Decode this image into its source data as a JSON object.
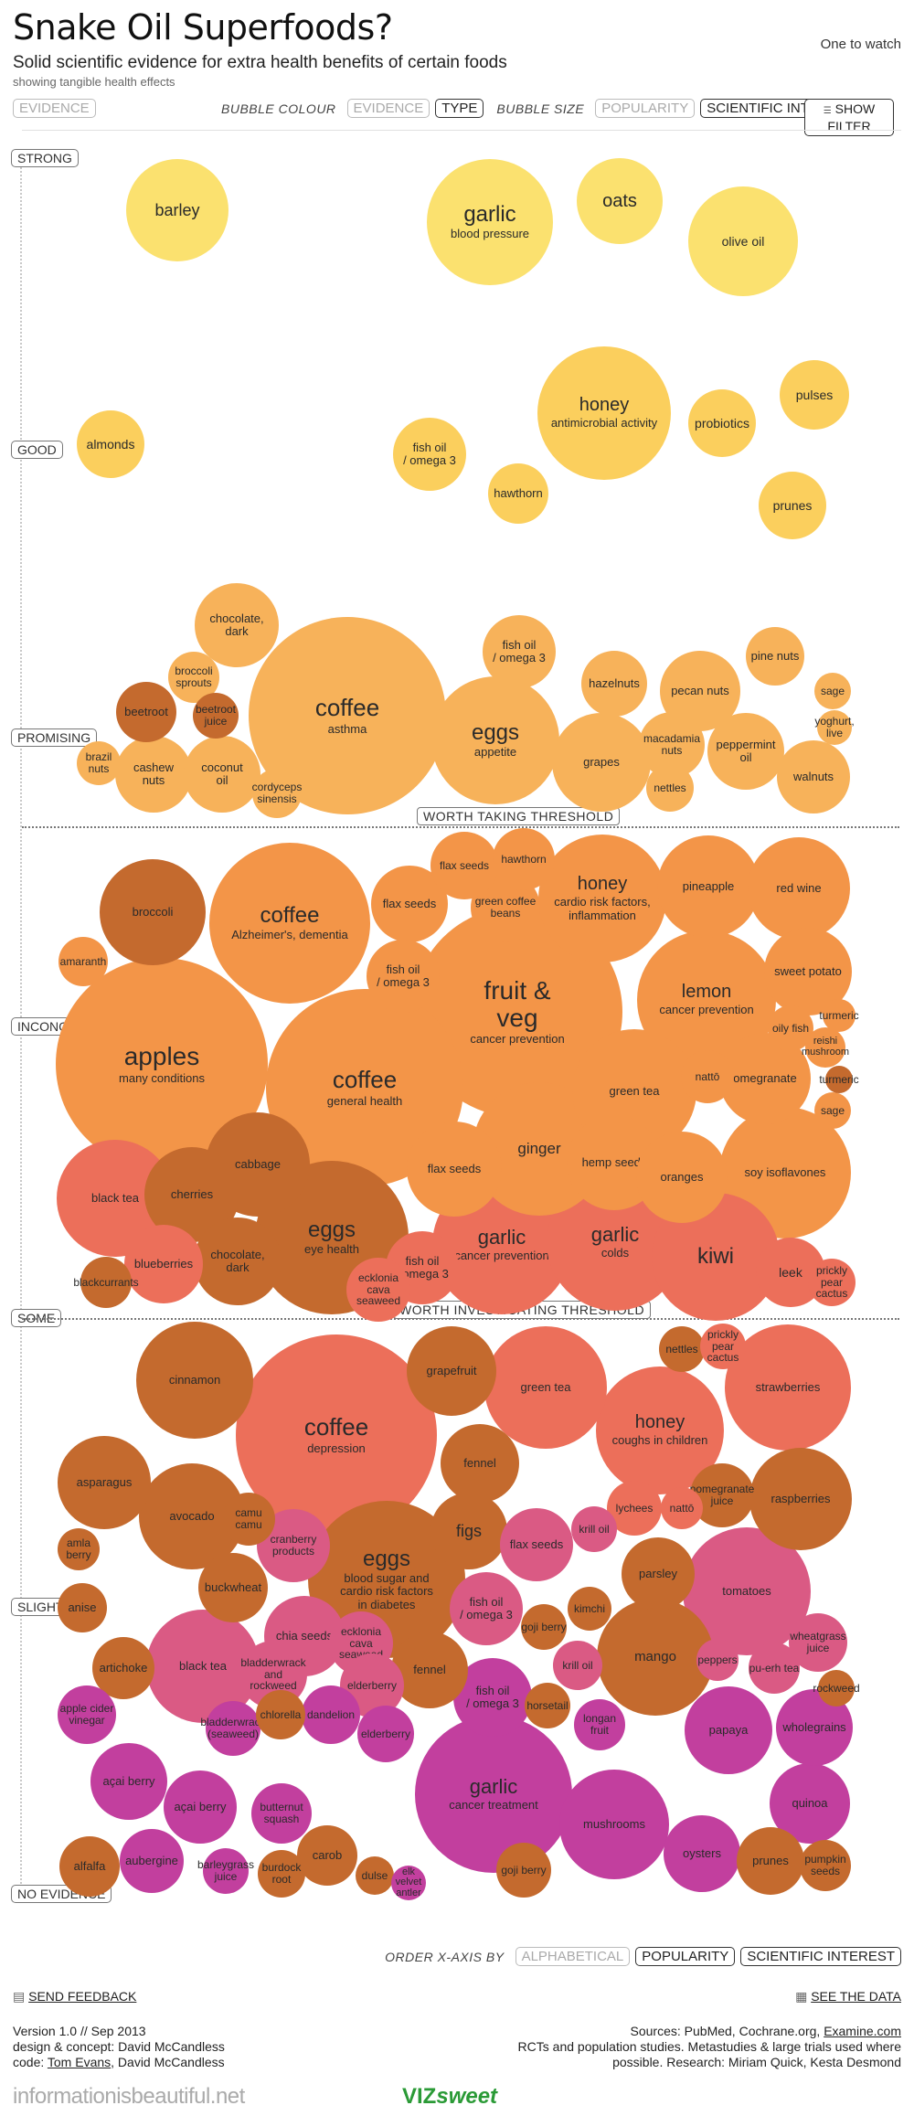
{
  "header": {
    "title": "Snake Oil Superfoods?",
    "subtitle": "Solid scientific evidence for extra health benefits of certain foods",
    "subsubtitle": "showing tangible health effects",
    "watch": "One to watch"
  },
  "controls": {
    "evidence": "EVIDENCE",
    "bubble_colour_label": "BUBBLE COLOUR",
    "colour_evidence": "EVIDENCE",
    "colour_type": "TYPE",
    "bubble_size_label": "BUBBLE SIZE",
    "size_popularity": "POPULARITY",
    "size_scientific": "SCIENTIFIC INTEREST",
    "show_filter": "SHOW FILTER",
    "order_label": "ORDER X-AXIS BY",
    "order_alpha": "ALPHABETICAL",
    "order_popularity": "POPULARITY",
    "order_scientific": "SCIENTIFIC INTEREST"
  },
  "levels": [
    "STRONG",
    "GOOD",
    "PROMISING",
    "INCONCLUSIVE",
    "SOME",
    "SLIGHT",
    "NO EVIDENCE"
  ],
  "thresholds": {
    "taking": "WORTH TAKING THRESHOLD",
    "investigating": "WORTH INVESTIGATING THRESHOLD"
  },
  "colors": {
    "strong": "#fbe16f",
    "good": "#fbcf5d",
    "promising": "#f7b25a",
    "inconclusive": "#f39548",
    "some": "#ec6f5a",
    "slight": "#da5a84",
    "none": "#c23f9e",
    "type_dark": "#c46a2e"
  },
  "bubbles": [
    {
      "id": "barley",
      "name": "barley",
      "sub": "",
      "c": "strong",
      "fs": 18
    },
    {
      "id": "garlic-bp",
      "name": "garlic",
      "sub": "blood pressure",
      "c": "strong",
      "fs": 24
    },
    {
      "id": "oats",
      "name": "oats",
      "sub": "",
      "c": "strong",
      "fs": 20
    },
    {
      "id": "olive-oil",
      "name": "olive oil",
      "sub": "",
      "c": "strong",
      "fs": 14
    },
    {
      "id": "honey-am",
      "name": "honey",
      "sub": "antimicrobial activity",
      "c": "good",
      "fs": 20
    },
    {
      "id": "pulses",
      "name": "pulses",
      "sub": "",
      "c": "good",
      "fs": 14
    },
    {
      "id": "almonds",
      "name": "almonds",
      "sub": "",
      "c": "good",
      "fs": 14
    },
    {
      "id": "probiotics",
      "name": "probiotics",
      "sub": "",
      "c": "good",
      "fs": 14
    },
    {
      "id": "fish-oil-1",
      "name": "fish oil\n/ omega 3",
      "sub": "",
      "c": "good",
      "fs": 13
    },
    {
      "id": "hawthorn-1",
      "name": "hawthorn",
      "sub": "",
      "c": "good",
      "fs": 13
    },
    {
      "id": "prunes-1",
      "name": "prunes",
      "sub": "",
      "c": "good",
      "fs": 14
    },
    {
      "id": "chocolate-1",
      "name": "chocolate,\ndark",
      "sub": "",
      "c": "promising",
      "fs": 13
    },
    {
      "id": "coffee-asthma",
      "name": "coffee",
      "sub": "asthma",
      "c": "promising",
      "fs": 26
    },
    {
      "id": "fish-oil-2",
      "name": "fish oil\n/ omega 3",
      "sub": "",
      "c": "promising",
      "fs": 13
    },
    {
      "id": "pine-nuts",
      "name": "pine nuts",
      "sub": "",
      "c": "promising",
      "fs": 13
    },
    {
      "id": "broccoli-sprouts",
      "name": "broccoli\nsprouts",
      "sub": "",
      "c": "promising",
      "fs": 12
    },
    {
      "id": "beetroot",
      "name": "beetroot",
      "sub": "",
      "c": "type_dark",
      "fs": 13
    },
    {
      "id": "beetroot-juice",
      "name": "beetroot\njuice",
      "sub": "",
      "c": "type_dark",
      "fs": 12
    },
    {
      "id": "hazelnuts",
      "name": "hazelnuts",
      "sub": "",
      "c": "promising",
      "fs": 13
    },
    {
      "id": "pecan-nuts",
      "name": "pecan nuts",
      "sub": "",
      "c": "promising",
      "fs": 13
    },
    {
      "id": "sage-1",
      "name": "sage",
      "sub": "",
      "c": "promising",
      "fs": 12
    },
    {
      "id": "eggs-appetite",
      "name": "eggs",
      "sub": "appetite",
      "c": "promising",
      "fs": 24
    },
    {
      "id": "yoghurt",
      "name": "yoghurt,\nlive",
      "sub": "",
      "c": "promising",
      "fs": 12
    },
    {
      "id": "brazil-nuts",
      "name": "brazil\nnuts",
      "sub": "",
      "c": "promising",
      "fs": 12
    },
    {
      "id": "cashew-nuts",
      "name": "cashew\nnuts",
      "sub": "",
      "c": "promising",
      "fs": 13
    },
    {
      "id": "coconut-oil",
      "name": "coconut\noil",
      "sub": "",
      "c": "promising",
      "fs": 13
    },
    {
      "id": "macadamia",
      "name": "macadamia\nnuts",
      "sub": "",
      "c": "promising",
      "fs": 12
    },
    {
      "id": "peppermint",
      "name": "peppermint\noil",
      "sub": "",
      "c": "promising",
      "fs": 13
    },
    {
      "id": "grapes",
      "name": "grapes",
      "sub": "",
      "c": "promising",
      "fs": 13
    },
    {
      "id": "walnuts",
      "name": "walnuts",
      "sub": "",
      "c": "promising",
      "fs": 13
    },
    {
      "id": "cordyceps",
      "name": "cordyceps\nsinensis",
      "sub": "",
      "c": "promising",
      "fs": 12
    },
    {
      "id": "nettles-1",
      "name": "nettles",
      "sub": "",
      "c": "promising",
      "fs": 12
    },
    {
      "id": "broccoli",
      "name": "broccoli",
      "sub": "",
      "c": "type_dark",
      "fs": 13
    },
    {
      "id": "coffee-alz",
      "name": "coffee",
      "sub": "Alzheimer's, dementia",
      "c": "inconclusive",
      "fs": 24
    },
    {
      "id": "flax-1",
      "name": "flax seeds",
      "sub": "",
      "c": "inconclusive",
      "fs": 12
    },
    {
      "id": "hawthorn-2",
      "name": "hawthorn",
      "sub": "",
      "c": "inconclusive",
      "fs": 12
    },
    {
      "id": "flax-2",
      "name": "flax seeds",
      "sub": "",
      "c": "inconclusive",
      "fs": 13
    },
    {
      "id": "green-coffee",
      "name": "green coffee\nbeans",
      "sub": "",
      "c": "inconclusive",
      "fs": 12
    },
    {
      "id": "honey-cardio",
      "name": "honey",
      "sub": "cardio risk factors,\ninflammation",
      "c": "inconclusive",
      "fs": 20
    },
    {
      "id": "pineapple",
      "name": "pineapple",
      "sub": "",
      "c": "inconclusive",
      "fs": 13
    },
    {
      "id": "red-wine",
      "name": "red wine",
      "sub": "",
      "c": "inconclusive",
      "fs": 13
    },
    {
      "id": "amaranth",
      "name": "amaranth",
      "sub": "",
      "c": "inconclusive",
      "fs": 12
    },
    {
      "id": "fish-oil-3",
      "name": "fish oil\n/ omega 3",
      "sub": "",
      "c": "inconclusive",
      "fs": 13
    },
    {
      "id": "fruit-veg",
      "name": "fruit &\nveg",
      "sub": "cancer prevention",
      "c": "inconclusive",
      "fs": 28
    },
    {
      "id": "lemon",
      "name": "lemon",
      "sub": "cancer prevention",
      "c": "inconclusive",
      "fs": 20
    },
    {
      "id": "sweet-potato",
      "name": "sweet potato",
      "sub": "",
      "c": "inconclusive",
      "fs": 13
    },
    {
      "id": "turmeric-1",
      "name": "turmeric",
      "sub": "",
      "c": "inconclusive",
      "fs": 12
    },
    {
      "id": "oily-fish",
      "name": "oily fish",
      "sub": "",
      "c": "inconclusive",
      "fs": 12
    },
    {
      "id": "reishi",
      "name": "reishi\nmushroom",
      "sub": "",
      "c": "inconclusive",
      "fs": 11
    },
    {
      "id": "apples",
      "name": "apples",
      "sub": "many conditions",
      "c": "inconclusive",
      "fs": 28
    },
    {
      "id": "coffee-gh",
      "name": "coffee",
      "sub": "general health",
      "c": "inconclusive",
      "fs": 26
    },
    {
      "id": "green-tea-1",
      "name": "green tea",
      "sub": "",
      "c": "inconclusive",
      "fs": 13
    },
    {
      "id": "natto-1",
      "name": "nattō",
      "sub": "",
      "c": "inconclusive",
      "fs": 12
    },
    {
      "id": "omegranate",
      "name": "omegranate",
      "sub": "",
      "c": "inconclusive",
      "fs": 13
    },
    {
      "id": "turmeric-2",
      "name": "turmeric",
      "sub": "",
      "c": "type_dark",
      "fs": 12
    },
    {
      "id": "sage-2",
      "name": "sage",
      "sub": "",
      "c": "inconclusive",
      "fs": 12
    },
    {
      "id": "cabbage",
      "name": "cabbage",
      "sub": "",
      "c": "type_dark",
      "fs": 13
    },
    {
      "id": "ginger",
      "name": "ginger",
      "sub": "",
      "c": "inconclusive",
      "fs": 17
    },
    {
      "id": "flax-3",
      "name": "flax seeds",
      "sub": "",
      "c": "inconclusive",
      "fs": 13
    },
    {
      "id": "hemp-seeds",
      "name": "hemp seeds",
      "sub": "",
      "c": "inconclusive",
      "fs": 13
    },
    {
      "id": "oranges",
      "name": "oranges",
      "sub": "",
      "c": "inconclusive",
      "fs": 13
    },
    {
      "id": "soy-iso",
      "name": "soy isoflavones",
      "sub": "",
      "c": "inconclusive",
      "fs": 13
    },
    {
      "id": "black-tea-1",
      "name": "black tea",
      "sub": "",
      "c": "some",
      "fs": 13
    },
    {
      "id": "cherries",
      "name": "cherries",
      "sub": "",
      "c": "type_dark",
      "fs": 13
    },
    {
      "id": "eggs-eye",
      "name": "eggs",
      "sub": "eye health",
      "c": "type_dark",
      "fs": 24
    },
    {
      "id": "garlic-cancer",
      "name": "garlic",
      "sub": "cancer prevention",
      "c": "some",
      "fs": 22
    },
    {
      "id": "garlic-colds",
      "name": "garlic",
      "sub": "colds",
      "c": "some",
      "fs": 22
    },
    {
      "id": "kiwi",
      "name": "kiwi",
      "sub": "",
      "c": "some",
      "fs": 24
    },
    {
      "id": "blueberries",
      "name": "blueberries",
      "sub": "",
      "c": "some",
      "fs": 13
    },
    {
      "id": "chocolate-2",
      "name": "chocolate,\ndark",
      "sub": "",
      "c": "type_dark",
      "fs": 13
    },
    {
      "id": "fish-oil-4",
      "name": "fish oil\n/ omega 3",
      "sub": "",
      "c": "some",
      "fs": 13
    },
    {
      "id": "leek",
      "name": "leek",
      "sub": "",
      "c": "some",
      "fs": 14
    },
    {
      "id": "prickly-1",
      "name": "prickly\npear cactus",
      "sub": "",
      "c": "some",
      "fs": 12
    },
    {
      "id": "blackcurrants",
      "name": "blackcurrants",
      "sub": "",
      "c": "type_dark",
      "fs": 12
    },
    {
      "id": "ecklonia-1",
      "name": "ecklonia\ncava seaweed",
      "sub": "",
      "c": "some",
      "fs": 12
    },
    {
      "id": "cinnamon",
      "name": "cinnamon",
      "sub": "",
      "c": "type_dark",
      "fs": 13
    },
    {
      "id": "coffee-dep",
      "name": "coffee",
      "sub": "depression",
      "c": "some",
      "fs": 26
    },
    {
      "id": "grapefruit",
      "name": "grapefruit",
      "sub": "",
      "c": "type_dark",
      "fs": 13
    },
    {
      "id": "green-tea-2",
      "name": "green tea",
      "sub": "",
      "c": "some",
      "fs": 13
    },
    {
      "id": "nettles-2",
      "name": "nettles",
      "sub": "",
      "c": "type_dark",
      "fs": 12
    },
    {
      "id": "prickly-2",
      "name": "prickly\npear cactus",
      "sub": "",
      "c": "some",
      "fs": 12
    },
    {
      "id": "strawberries",
      "name": "strawberries",
      "sub": "",
      "c": "some",
      "fs": 13
    },
    {
      "id": "honey-cough",
      "name": "honey",
      "sub": "coughs in children",
      "c": "some",
      "fs": 20
    },
    {
      "id": "fennel-1",
      "name": "fennel",
      "sub": "",
      "c": "type_dark",
      "fs": 13
    },
    {
      "id": "asparagus",
      "name": "asparagus",
      "sub": "",
      "c": "type_dark",
      "fs": 13
    },
    {
      "id": "avocado",
      "name": "avocado",
      "sub": "",
      "c": "type_dark",
      "fs": 13
    },
    {
      "id": "camu-camu",
      "name": "camu camu",
      "sub": "",
      "c": "type_dark",
      "fs": 12
    },
    {
      "id": "pomegranate-juice",
      "name": "pomegranate\njuice",
      "sub": "",
      "c": "type_dark",
      "fs": 12
    },
    {
      "id": "raspberries",
      "name": "raspberries",
      "sub": "",
      "c": "type_dark",
      "fs": 13
    },
    {
      "id": "lychees",
      "name": "lychees",
      "sub": "",
      "c": "some",
      "fs": 12
    },
    {
      "id": "natto-2",
      "name": "nattō",
      "sub": "",
      "c": "some",
      "fs": 12
    },
    {
      "id": "figs",
      "name": "figs",
      "sub": "",
      "c": "type_dark",
      "fs": 18
    },
    {
      "id": "flax-4",
      "name": "flax seeds",
      "sub": "",
      "c": "slight",
      "fs": 13
    },
    {
      "id": "krill-1",
      "name": "krill oil",
      "sub": "",
      "c": "slight",
      "fs": 12
    },
    {
      "id": "amla-berry",
      "name": "amla berry",
      "sub": "",
      "c": "type_dark",
      "fs": 12
    },
    {
      "id": "cranberry",
      "name": "cranberry\nproducts",
      "sub": "",
      "c": "slight",
      "fs": 12
    },
    {
      "id": "eggs-blood",
      "name": "eggs",
      "sub": "blood sugar and\ncardio risk factors\nin diabetes",
      "c": "type_dark",
      "fs": 24
    },
    {
      "id": "parsley",
      "name": "parsley",
      "sub": "",
      "c": "type_dark",
      "fs": 13
    },
    {
      "id": "tomatoes",
      "name": "tomatoes",
      "sub": "",
      "c": "slight",
      "fs": 13
    },
    {
      "id": "buckwheat",
      "name": "buckwheat",
      "sub": "",
      "c": "type_dark",
      "fs": 13
    },
    {
      "id": "anise",
      "name": "anise",
      "sub": "",
      "c": "type_dark",
      "fs": 13
    },
    {
      "id": "fish-oil-5",
      "name": "fish oil\n/ omega 3",
      "sub": "",
      "c": "slight",
      "fs": 13
    },
    {
      "id": "kimchi",
      "name": "kimchi",
      "sub": "",
      "c": "type_dark",
      "fs": 12
    },
    {
      "id": "goji-1",
      "name": "goji berry",
      "sub": "",
      "c": "type_dark",
      "fs": 12
    },
    {
      "id": "wheatgrass",
      "name": "wheatgrass\njuice",
      "sub": "",
      "c": "slight",
      "fs": 12
    },
    {
      "id": "chia",
      "name": "chia seeds",
      "sub": "",
      "c": "slight",
      "fs": 13
    },
    {
      "id": "ecklonia-2",
      "name": "ecklonia\ncava seaweed",
      "sub": "",
      "c": "slight",
      "fs": 12
    },
    {
      "id": "mango",
      "name": "mango",
      "sub": "",
      "c": "type_dark",
      "fs": 15
    },
    {
      "id": "krill-2",
      "name": "krill oil",
      "sub": "",
      "c": "slight",
      "fs": 12
    },
    {
      "id": "peppers",
      "name": "peppers",
      "sub": "",
      "c": "slight",
      "fs": 12
    },
    {
      "id": "pu-erh",
      "name": "pu-erh tea",
      "sub": "",
      "c": "slight",
      "fs": 12
    },
    {
      "id": "artichoke",
      "name": "artichoke",
      "sub": "",
      "c": "type_dark",
      "fs": 13
    },
    {
      "id": "black-tea-2",
      "name": "black tea",
      "sub": "",
      "c": "slight",
      "fs": 13
    },
    {
      "id": "bladderwrack-1",
      "name": "bladderwrack\nand rockweed",
      "sub": "",
      "c": "slight",
      "fs": 12
    },
    {
      "id": "fennel-2",
      "name": "fennel",
      "sub": "",
      "c": "type_dark",
      "fs": 13
    },
    {
      "id": "elderberry-1",
      "name": "elderberry",
      "sub": "",
      "c": "slight",
      "fs": 12
    },
    {
      "id": "fish-oil-6",
      "name": "fish oil\n/ omega 3",
      "sub": "",
      "c": "none",
      "fs": 13
    },
    {
      "id": "rockweed",
      "name": "rockweed",
      "sub": "",
      "c": "type_dark",
      "fs": 12
    },
    {
      "id": "horsetail",
      "name": "horsetail",
      "sub": "",
      "c": "type_dark",
      "fs": 12
    },
    {
      "id": "longan",
      "name": "longan\nfruit",
      "sub": "",
      "c": "none",
      "fs": 12
    },
    {
      "id": "apple-cider",
      "name": "apple cider\nvinegar",
      "sub": "",
      "c": "none",
      "fs": 12
    },
    {
      "id": "bladderwrack-2",
      "name": "bladderwrack\n(seaweed)",
      "sub": "",
      "c": "none",
      "fs": 12
    },
    {
      "id": "chlorella",
      "name": "chlorella",
      "sub": "",
      "c": "type_dark",
      "fs": 12
    },
    {
      "id": "dandelion",
      "name": "dandelion",
      "sub": "",
      "c": "none",
      "fs": 12
    },
    {
      "id": "elderberry-2",
      "name": "elderberry",
      "sub": "",
      "c": "none",
      "fs": 12
    },
    {
      "id": "papaya",
      "name": "papaya",
      "sub": "",
      "c": "none",
      "fs": 13
    },
    {
      "id": "wholegrains",
      "name": "wholegrains",
      "sub": "",
      "c": "none",
      "fs": 13
    },
    {
      "id": "acai-1",
      "name": "açai berry",
      "sub": "",
      "c": "none",
      "fs": 13
    },
    {
      "id": "garlic-ct",
      "name": "garlic",
      "sub": "cancer treatment",
      "c": "none",
      "fs": 22
    },
    {
      "id": "quinoa",
      "name": "quinoa",
      "sub": "",
      "c": "none",
      "fs": 13
    },
    {
      "id": "acai-2",
      "name": "açai berry",
      "sub": "",
      "c": "none",
      "fs": 13
    },
    {
      "id": "butternut",
      "name": "butternut\nsquash",
      "sub": "",
      "c": "none",
      "fs": 12
    },
    {
      "id": "mushrooms",
      "name": "mushrooms",
      "sub": "",
      "c": "none",
      "fs": 13
    },
    {
      "id": "carob",
      "name": "carob",
      "sub": "",
      "c": "type_dark",
      "fs": 13
    },
    {
      "id": "oysters",
      "name": "oysters",
      "sub": "",
      "c": "none",
      "fs": 13
    },
    {
      "id": "prunes-2",
      "name": "prunes",
      "sub": "",
      "c": "type_dark",
      "fs": 13
    },
    {
      "id": "pumpkin",
      "name": "pumpkin\nseeds",
      "sub": "",
      "c": "type_dark",
      "fs": 12
    },
    {
      "id": "alfalfa",
      "name": "alfalfa",
      "sub": "",
      "c": "type_dark",
      "fs": 13
    },
    {
      "id": "aubergine",
      "name": "aubergine",
      "sub": "",
      "c": "none",
      "fs": 13
    },
    {
      "id": "barleygrass",
      "name": "barleygrass\njuice",
      "sub": "",
      "c": "none",
      "fs": 12
    },
    {
      "id": "burdock",
      "name": "burdock\nroot",
      "sub": "",
      "c": "type_dark",
      "fs": 12
    },
    {
      "id": "dulse",
      "name": "dulse",
      "sub": "",
      "c": "type_dark",
      "fs": 12
    },
    {
      "id": "elk-velvet",
      "name": "elk velvet\nantler",
      "sub": "",
      "c": "none",
      "fs": 11
    },
    {
      "id": "goji-2",
      "name": "goji berry",
      "sub": "",
      "c": "type_dark",
      "fs": 12
    }
  ],
  "footer": {
    "send_feedback": "SEND FEEDBACK",
    "see_data": "SEE THE DATA",
    "version": "Version 1.0 // Sep 2013",
    "design": "design & concept: David McCandless",
    "code_prefix": "code: ",
    "code_link": "Tom Evans",
    "code_suffix": ", David McCandless",
    "sources_prefix": "Sources: PubMed, Cochrane.org, ",
    "sources_link": "Examine.com",
    "rcts": "RCTs and population studies. Metastudies & large trials used where",
    "research": "possible. Research: Miriam Quick, Kesta Desmond",
    "site": "informationisbeautiful.net",
    "viz_a": "VIZ",
    "viz_b": "sweet",
    "feedback_icon": "speech-bubble-icon",
    "data_icon": "grid-icon"
  }
}
